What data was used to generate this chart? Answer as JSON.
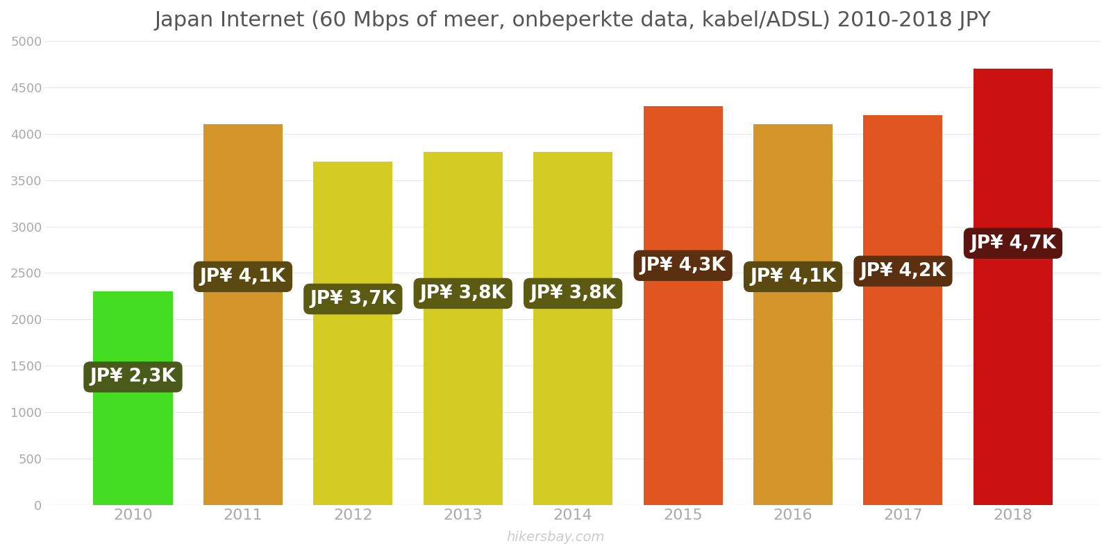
{
  "years": [
    2010,
    2011,
    2012,
    2013,
    2014,
    2015,
    2016,
    2017,
    2018
  ],
  "values": [
    2300,
    4100,
    3700,
    3800,
    3800,
    4300,
    4100,
    4200,
    4700
  ],
  "bar_colors": [
    "#44dd22",
    "#d4952a",
    "#d4cc22",
    "#d4cc22",
    "#d4cc22",
    "#e05520",
    "#d4952a",
    "#e05520",
    "#cc1111"
  ],
  "label_box_colors": [
    "#4a5a1a",
    "#5a4a12",
    "#5a5a12",
    "#5a5a12",
    "#5a5a12",
    "#5a3010",
    "#5a4a12",
    "#5a3010",
    "#5a1510"
  ],
  "labels": [
    "JP¥ 2,3K",
    "JP¥ 4,1K",
    "JP¥ 3,7K",
    "JP¥ 3,8K",
    "JP¥ 3,8K",
    "JP¥ 4,3K",
    "JP¥ 4,1K",
    "JP¥ 4,2K",
    "JP¥ 4,7K"
  ],
  "title": "Japan Internet (60 Mbps of meer, onbeperkte data, kabel/ADSL) 2010-2018 JPY",
  "ylim": [
    0,
    5000
  ],
  "yticks": [
    0,
    500,
    1000,
    1500,
    2000,
    2500,
    3000,
    3500,
    4000,
    4500,
    5000
  ],
  "watermark": "hikersbay.com",
  "background_color": "#ffffff",
  "title_color": "#555555",
  "tick_color": "#aaaaaa",
  "label_text_color": "#ffffff",
  "label_fontsize": 19,
  "title_fontsize": 22,
  "bar_width": 0.72
}
